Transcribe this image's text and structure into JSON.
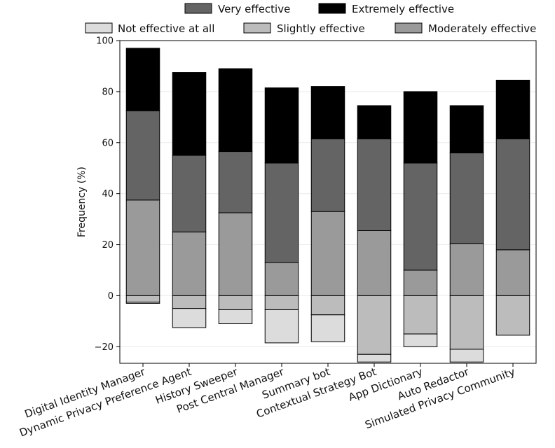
{
  "chart_data": {
    "type": "bar",
    "stacking": "diverging",
    "title": "",
    "xlabel": "",
    "ylabel": "Frequency (%)",
    "ylim": [
      -26.5,
      100
    ],
    "yticks": [
      -20,
      0,
      20,
      40,
      60,
      80,
      100
    ],
    "yticks_labels": [
      "−20",
      "0",
      "20",
      "40",
      "60",
      "80",
      "100"
    ],
    "grid": true,
    "legend_position": "top",
    "categories": [
      "Digital Identity Manager",
      "Dynamic Privacy Preference Agent",
      "History Sweeper",
      "Post Central Manager",
      "Summary bot",
      "Contextual Strategy Bot",
      "App Dictionary",
      "Auto Redactor",
      "Simulated Privacy Community"
    ],
    "series": [
      {
        "name": "Not effective at all",
        "color": "#dcdcdc",
        "direction": "negative",
        "values": [
          0.5,
          7.5,
          5.5,
          13,
          10.5,
          3,
          5,
          5,
          0
        ]
      },
      {
        "name": "Slightly effective",
        "color": "#bcbcbc",
        "direction": "negative",
        "values": [
          2.5,
          5,
          5.5,
          5.5,
          7.5,
          23,
          15,
          21,
          15.5
        ]
      },
      {
        "name": "Moderately effective",
        "color": "#9a9a9a",
        "direction": "positive",
        "values": [
          37.5,
          25,
          32.5,
          13,
          33,
          25.5,
          10,
          20.5,
          18
        ]
      },
      {
        "name": "Very effective",
        "color": "#646464",
        "direction": "positive",
        "values": [
          35,
          30,
          24,
          39,
          28.5,
          36,
          42,
          35.5,
          43.5
        ]
      },
      {
        "name": "Extremely effective",
        "color": "#000000",
        "direction": "positive",
        "values": [
          24.5,
          32.5,
          32.5,
          29.5,
          20.5,
          13,
          28,
          18.5,
          23
        ]
      }
    ],
    "legend": [
      {
        "label": "Very effective",
        "color": "#646464"
      },
      {
        "label": "Extremely effective",
        "color": "#000000"
      },
      {
        "label": "Not effective at all",
        "color": "#dcdcdc"
      },
      {
        "label": "Slightly effective",
        "color": "#bcbcbc"
      },
      {
        "label": "Moderately effective",
        "color": "#9a9a9a"
      }
    ]
  }
}
